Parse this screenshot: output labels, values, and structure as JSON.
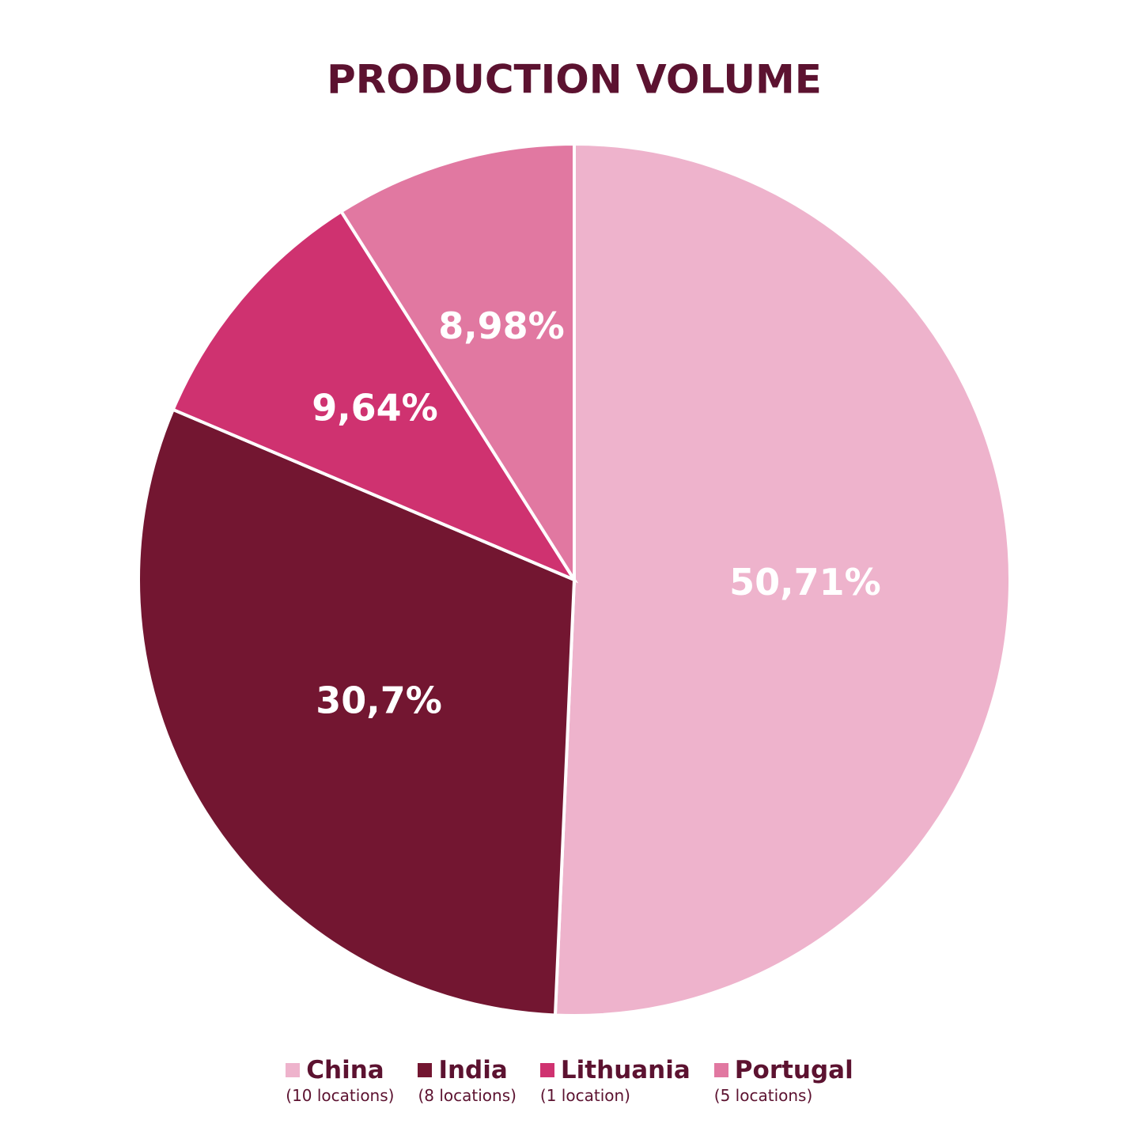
{
  "chart_data": {
    "type": "pie",
    "title": "PRODUCTION VOLUME",
    "categories": [
      "China",
      "India",
      "Lithuania",
      "Portugal"
    ],
    "category_notes": [
      "(10 locations)",
      "(8 locations)",
      "(1 location)",
      "(5 locations)"
    ],
    "values": [
      50.71,
      30.7,
      9.64,
      8.98
    ],
    "value_labels": [
      "50,71%",
      "30,7%",
      "9,64%",
      "8,98%"
    ],
    "colors": [
      "#eeb3cc",
      "#731631",
      "#cf3270",
      "#e178a1"
    ]
  }
}
